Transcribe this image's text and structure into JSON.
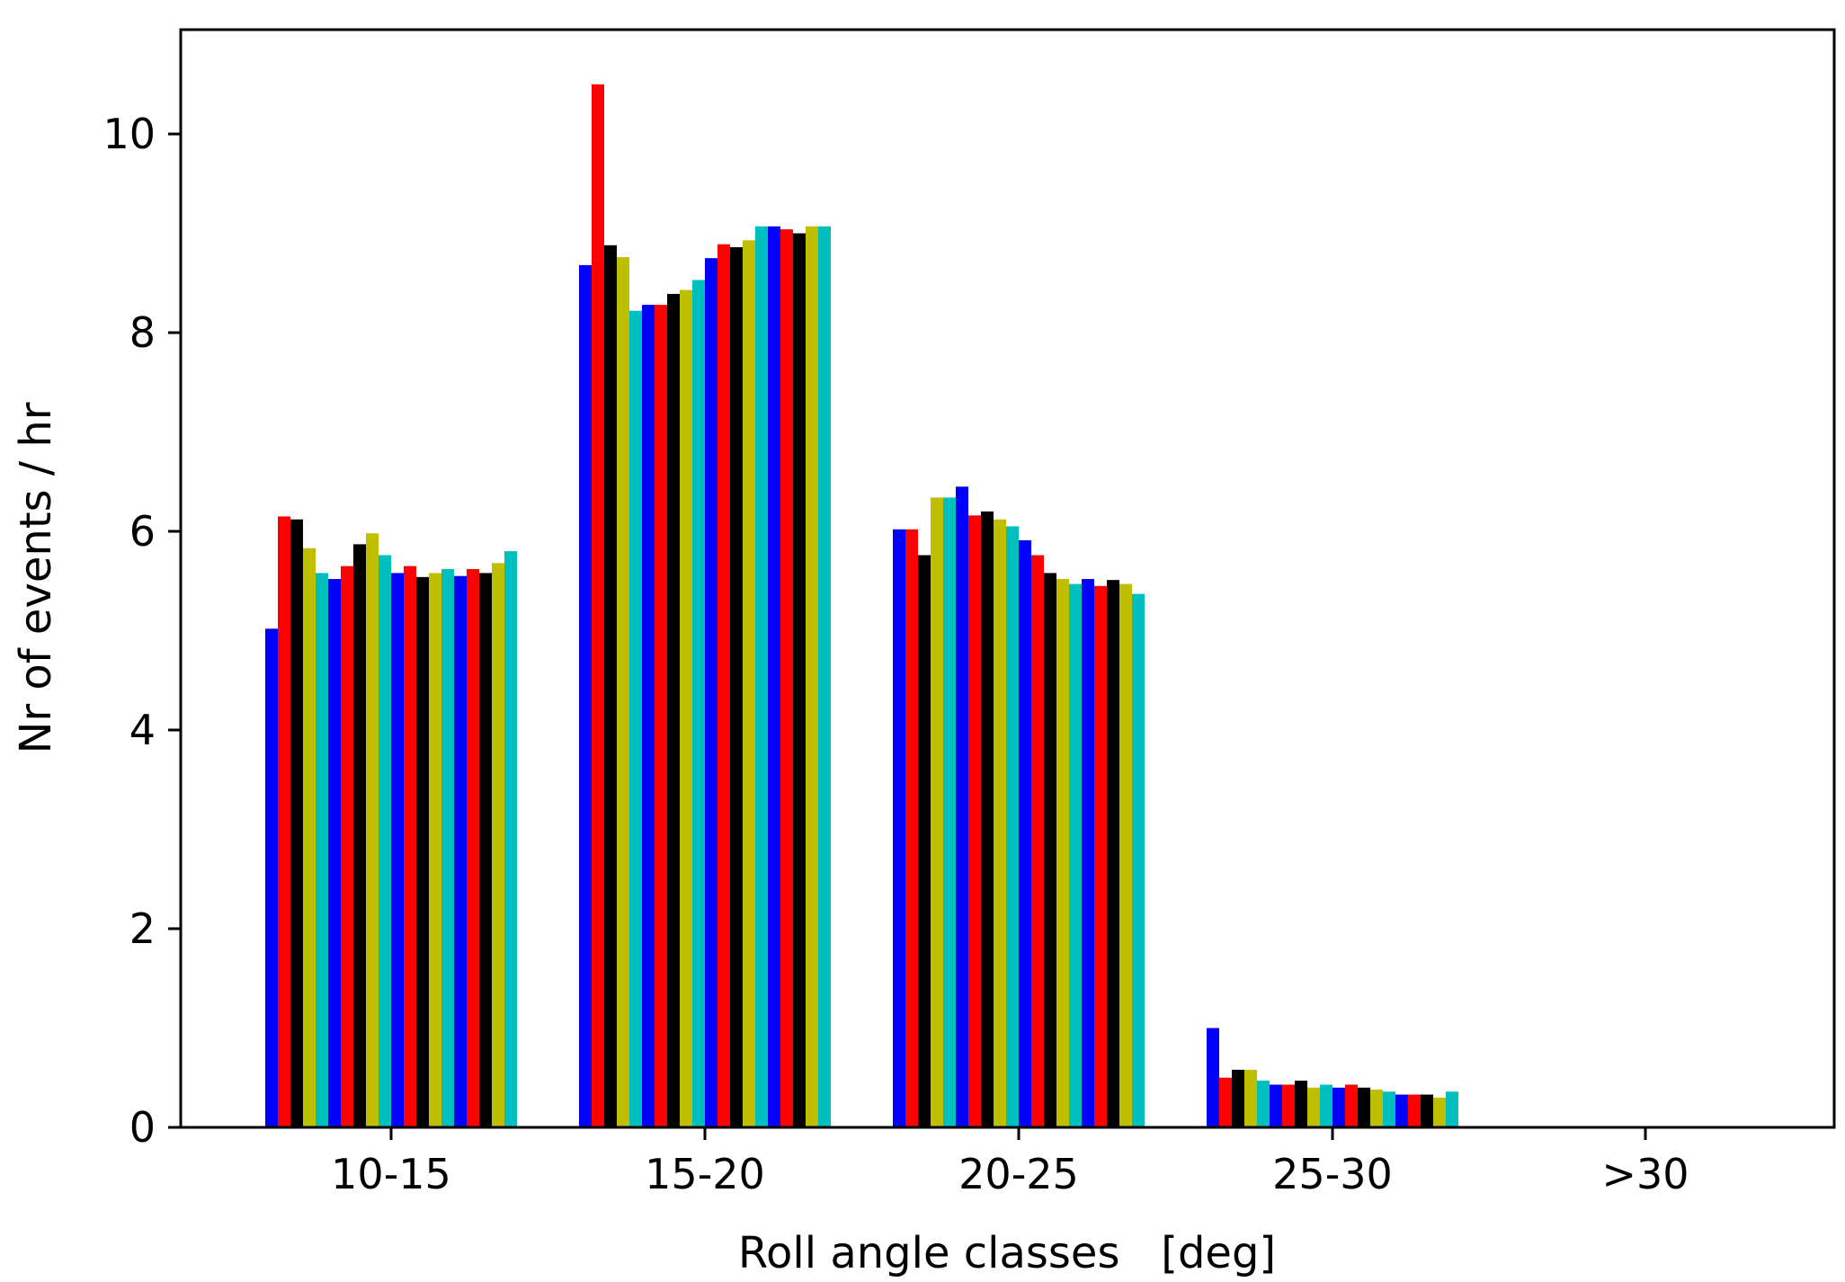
{
  "chart_data": {
    "type": "bar",
    "title": "",
    "xlabel": "Roll angle classes   [deg]",
    "ylabel": "Nr of events / hr",
    "categories": [
      "10-15",
      "15-20",
      "20-25",
      "25-30",
      ">30"
    ],
    "yticks": [
      "0",
      "2",
      "4",
      "6",
      "8",
      "10"
    ],
    "ylim": [
      0,
      11.05
    ],
    "grid": false,
    "legend": "none",
    "bar_colors": [
      "#0000ff",
      "#ff0000",
      "#000000",
      "#bfbf00",
      "#00bfbf"
    ],
    "series": [
      {
        "values": [
          5.02,
          8.68,
          6.02,
          1.0,
          0
        ]
      },
      {
        "values": [
          6.15,
          10.5,
          6.02,
          0.5,
          0
        ]
      },
      {
        "values": [
          6.12,
          8.88,
          5.76,
          0.58,
          0
        ]
      },
      {
        "values": [
          5.83,
          8.76,
          6.34,
          0.58,
          0
        ]
      },
      {
        "values": [
          5.58,
          8.22,
          6.34,
          0.47,
          0
        ]
      },
      {
        "values": [
          5.52,
          8.28,
          6.45,
          0.43,
          0
        ]
      },
      {
        "values": [
          5.65,
          8.28,
          6.16,
          0.43,
          0
        ]
      },
      {
        "values": [
          5.87,
          8.39,
          6.2,
          0.47,
          0
        ]
      },
      {
        "values": [
          5.98,
          8.43,
          6.12,
          0.4,
          0
        ]
      },
      {
        "values": [
          5.76,
          8.53,
          6.05,
          0.43,
          0
        ]
      },
      {
        "values": [
          5.58,
          8.75,
          5.91,
          0.4,
          0
        ]
      },
      {
        "values": [
          5.65,
          8.89,
          5.76,
          0.43,
          0
        ]
      },
      {
        "values": [
          5.54,
          8.86,
          5.58,
          0.4,
          0
        ]
      },
      {
        "values": [
          5.58,
          8.93,
          5.52,
          0.38,
          0
        ]
      },
      {
        "values": [
          5.62,
          9.07,
          5.47,
          0.36,
          0
        ]
      },
      {
        "values": [
          5.55,
          9.07,
          5.52,
          0.33,
          0
        ]
      },
      {
        "values": [
          5.62,
          9.04,
          5.45,
          0.33,
          0
        ]
      },
      {
        "values": [
          5.58,
          9.0,
          5.51,
          0.33,
          0
        ]
      },
      {
        "values": [
          5.68,
          9.07,
          5.47,
          0.3,
          0
        ]
      },
      {
        "values": [
          5.8,
          9.07,
          5.37,
          0.36,
          0
        ]
      }
    ]
  }
}
